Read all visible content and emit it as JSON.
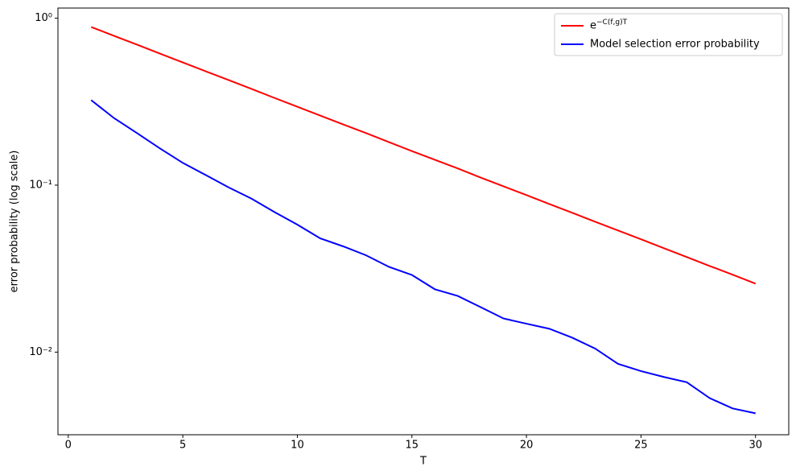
{
  "chart_data": {
    "type": "line",
    "x_label": "T",
    "y_label": "error probability (log scale)",
    "x": [
      1,
      2,
      3,
      4,
      5,
      6,
      7,
      8,
      9,
      10,
      11,
      12,
      13,
      14,
      15,
      16,
      17,
      18,
      19,
      20,
      21,
      22,
      23,
      24,
      25,
      26,
      27,
      28,
      29,
      30
    ],
    "series": [
      {
        "name": "e^{−C(f,g)T}",
        "color": "#ff0000",
        "values": [
          0.885,
          0.784,
          0.694,
          0.614,
          0.543,
          0.481,
          0.426,
          0.377,
          0.333,
          0.295,
          0.261,
          0.231,
          0.205,
          0.181,
          0.16,
          0.142,
          0.126,
          0.111,
          0.0984,
          0.0872,
          0.0771,
          0.0683,
          0.0604,
          0.0535,
          0.0474,
          0.0419,
          0.0371,
          0.0328,
          0.0291,
          0.0257
        ]
      },
      {
        "name": "Model selection error probability",
        "color": "#0000ff",
        "values": [
          0.323,
          0.252,
          0.205,
          0.166,
          0.136,
          0.115,
          0.097,
          0.083,
          0.069,
          0.058,
          0.048,
          0.043,
          0.038,
          0.0324,
          0.029,
          0.0238,
          0.0217,
          0.0186,
          0.0159,
          0.0148,
          0.0138,
          0.0122,
          0.0105,
          0.0085,
          0.0077,
          0.0071,
          0.0066,
          0.0053,
          0.0046,
          0.0043
        ]
      }
    ],
    "xlim": [
      -0.45,
      31.45
    ],
    "xticks": [
      0,
      5,
      10,
      15,
      20,
      25,
      30
    ],
    "ylim": [
      0.0032,
      1.15
    ],
    "log_y": true,
    "yticks": [
      {
        "value": 1,
        "label": "10⁰"
      },
      {
        "value": 0.1,
        "label": "10⁻¹"
      },
      {
        "value": 0.01,
        "label": "10⁻²"
      }
    ],
    "legend": "upper right"
  }
}
